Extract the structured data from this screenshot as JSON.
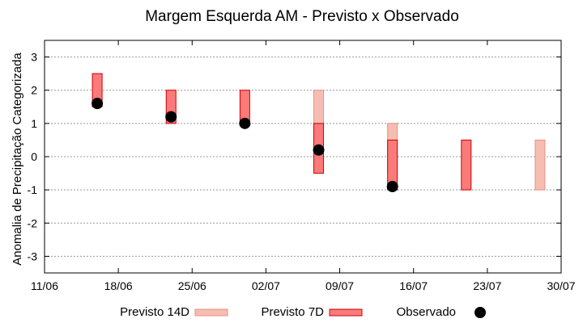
{
  "chart_data": {
    "type": "floating-bar",
    "title": "Margem Esquerda AM - Previsto x Observado",
    "xlabel": "",
    "ylabel": "Anomalia de Precipitação Categorizada",
    "ylim": [
      -3.5,
      3.5
    ],
    "yticks": [
      -3,
      -2,
      -1,
      0,
      1,
      2,
      3
    ],
    "x_ticks": [
      "11/06",
      "18/06",
      "25/06",
      "02/07",
      "09/07",
      "16/07",
      "23/07",
      "30/07"
    ],
    "grid": true,
    "legend_position": "bottom",
    "categories": [
      "16/06",
      "23/06",
      "30/06",
      "07/07",
      "14/07",
      "21/07",
      "28/07"
    ],
    "series": [
      {
        "name": "Previsto 14D",
        "type": "range",
        "color": "#f6bdb3",
        "edge": "#e89080",
        "ranges": [
          null,
          null,
          null,
          [
            1,
            2
          ],
          [
            -0.5,
            1
          ],
          null,
          [
            -1,
            0.5
          ]
        ]
      },
      {
        "name": "Previsto 7D",
        "type": "range",
        "color": "#fb7a7a",
        "edge": "#cc0000",
        "ranges": [
          [
            1.5,
            2.5
          ],
          [
            1,
            2
          ],
          [
            1,
            2
          ],
          [
            -0.5,
            1
          ],
          [
            -1,
            0.5
          ],
          [
            -1,
            0.5
          ],
          null
        ]
      },
      {
        "name": "Observado",
        "type": "point",
        "color": "#000000",
        "values": [
          1.6,
          1.2,
          1.0,
          0.2,
          -0.9,
          null,
          null
        ]
      }
    ]
  }
}
